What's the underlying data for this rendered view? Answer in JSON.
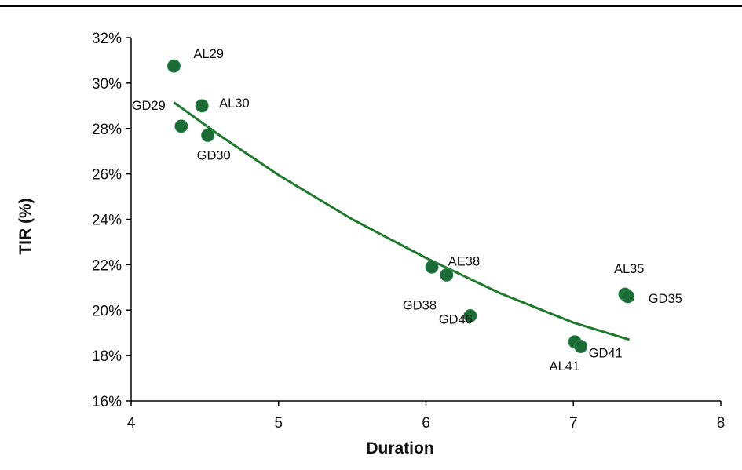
{
  "chart_data": {
    "type": "scatter",
    "xlabel": "Duration",
    "ylabel": "TIR (%)",
    "xlim": [
      4,
      8
    ],
    "ylim": [
      0.16,
      0.32
    ],
    "xticks": [
      "4",
      "5",
      "6",
      "7",
      "8"
    ],
    "yticks": [
      "16%",
      "18%",
      "20%",
      "22%",
      "24%",
      "26%",
      "28%",
      "30%",
      "32%"
    ],
    "grid": false,
    "legend": "none",
    "point_color": "#1a6b35",
    "trend_color": "#1f7a2e",
    "points": [
      {
        "label": "AL29",
        "x": 4.29,
        "y": 0.3075
      },
      {
        "label": "GD29",
        "x": 4.34,
        "y": 0.281
      },
      {
        "label": "AL30",
        "x": 4.48,
        "y": 0.29
      },
      {
        "label": "GD30",
        "x": 4.52,
        "y": 0.277
      },
      {
        "label": "GD38",
        "x": 6.04,
        "y": 0.219
      },
      {
        "label": "AE38",
        "x": 6.14,
        "y": 0.2155
      },
      {
        "label": "GD46",
        "x": 6.3,
        "y": 0.1975
      },
      {
        "label": "AL41",
        "x": 7.01,
        "y": 0.186
      },
      {
        "label": "GD41",
        "x": 7.05,
        "y": 0.184
      },
      {
        "label": "AL35",
        "x": 7.35,
        "y": 0.207
      },
      {
        "label": "GD35",
        "x": 7.37,
        "y": 0.206
      }
    ],
    "trendline": {
      "x": [
        4.29,
        4.6,
        5.0,
        5.5,
        6.0,
        6.5,
        7.0,
        7.38
      ],
      "y": [
        0.2915,
        0.277,
        0.2595,
        0.24,
        0.223,
        0.2075,
        0.1945,
        0.187
      ]
    }
  }
}
